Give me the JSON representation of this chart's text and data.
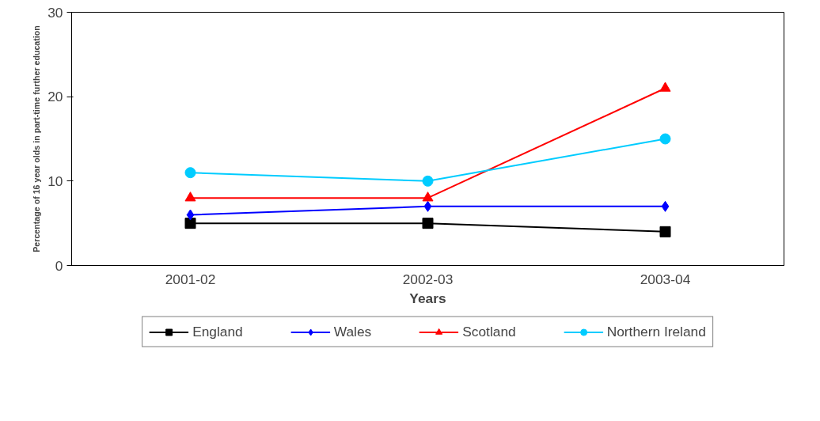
{
  "chart_data": {
    "type": "line",
    "xlabel": "Years",
    "ylabel": "Percentage of 16 year olds in part-time further education",
    "categories": [
      "2001-02",
      "2002-03",
      "2003-04"
    ],
    "series": [
      {
        "name": "England",
        "color": "#000000",
        "marker": "square",
        "values": [
          5,
          5,
          4
        ]
      },
      {
        "name": "Wales",
        "color": "#0000ff",
        "marker": "diamond",
        "values": [
          6,
          7,
          7
        ]
      },
      {
        "name": "Scotland",
        "color": "#ff0000",
        "marker": "triangle",
        "values": [
          8,
          8,
          21
        ]
      },
      {
        "name": "Northern Ireland",
        "color": "#00ccff",
        "marker": "circle",
        "values": [
          11,
          10,
          15
        ]
      }
    ],
    "ylim": [
      0,
      30
    ],
    "yticks": [
      0,
      10,
      20,
      30
    ],
    "grid": false,
    "legend": "bottom",
    "line_style": "solid"
  }
}
